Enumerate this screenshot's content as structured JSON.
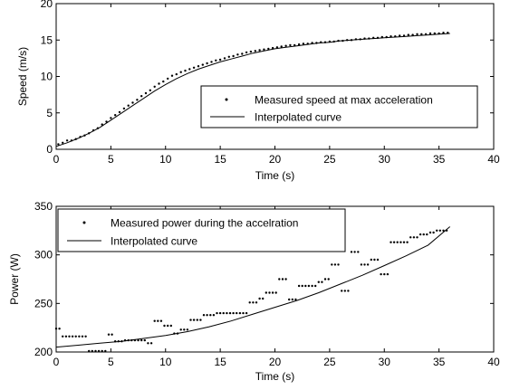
{
  "chart_data": [
    {
      "type": "line",
      "xlabel": "Time (s)",
      "ylabel": "Speed (m/s)",
      "xlim": [
        0,
        40
      ],
      "ylim": [
        0,
        20
      ],
      "xticks": [
        "0",
        "5",
        "10",
        "15",
        "20",
        "25",
        "30",
        "35",
        "40"
      ],
      "yticks": [
        "0",
        "5",
        "10",
        "15",
        "20"
      ],
      "grid": false,
      "legend_position": "lower-right",
      "series": [
        {
          "name": "Measured speed at max acceleration",
          "style": "points",
          "x": [
            0.2,
            0.6,
            1.0,
            1.4,
            1.8,
            2.2,
            2.6,
            3.0,
            3.4,
            3.8,
            4.2,
            4.6,
            5.0,
            5.4,
            5.8,
            6.2,
            6.6,
            7.0,
            7.4,
            7.8,
            8.2,
            8.6,
            9.0,
            9.4,
            9.8,
            10.2,
            10.6,
            11.0,
            11.4,
            11.8,
            12.2,
            12.6,
            13.0,
            13.4,
            13.8,
            14.2,
            14.6,
            15.0,
            15.4,
            15.8,
            16.2,
            16.6,
            17.0,
            17.4,
            17.8,
            18.2,
            18.6,
            19.0,
            19.4,
            19.8,
            20.2,
            20.6,
            21.0,
            21.4,
            21.8,
            22.2,
            22.6,
            23.0,
            23.4,
            23.8,
            24.2,
            24.6,
            25.0,
            25.4,
            25.8,
            26.2,
            26.6,
            27.0,
            27.4,
            27.8,
            28.2,
            28.6,
            29.0,
            29.4,
            29.8,
            30.2,
            30.6,
            31.0,
            31.4,
            31.8,
            32.2,
            32.6,
            33.0,
            33.4,
            33.8,
            34.2,
            34.6,
            35.0,
            35.4,
            35.8
          ],
          "y": [
            0.7,
            0.9,
            1.2,
            1.2,
            1.4,
            1.7,
            1.9,
            2.2,
            2.6,
            2.9,
            3.4,
            3.8,
            4.3,
            4.7,
            5.1,
            5.6,
            6.0,
            6.4,
            6.8,
            7.3,
            7.7,
            8.1,
            8.6,
            9.0,
            9.3,
            9.7,
            10.1,
            10.3,
            10.6,
            10.8,
            11.0,
            11.2,
            11.4,
            11.6,
            11.8,
            12.0,
            12.2,
            12.3,
            12.5,
            12.7,
            12.8,
            13.0,
            13.1,
            13.3,
            13.4,
            13.5,
            13.6,
            13.7,
            13.8,
            13.9,
            14.0,
            14.1,
            14.2,
            14.3,
            14.3,
            14.4,
            14.5,
            14.5,
            14.6,
            14.6,
            14.7,
            14.7,
            14.8,
            14.8,
            14.9,
            14.9,
            15.0,
            15.0,
            15.1,
            15.1,
            15.2,
            15.2,
            15.3,
            15.3,
            15.4,
            15.4,
            15.5,
            15.5,
            15.6,
            15.6,
            15.7,
            15.7,
            15.8,
            15.8,
            15.8,
            15.9,
            15.9,
            15.9,
            16.0,
            16.0
          ]
        },
        {
          "name": "Interpolated curve",
          "style": "line",
          "x": [
            0,
            1,
            2,
            3,
            4,
            5,
            6,
            7,
            8,
            9,
            10,
            11,
            12,
            13,
            14,
            15,
            16,
            17,
            18,
            19,
            20,
            21,
            22,
            23,
            24,
            25,
            26,
            27,
            28,
            29,
            30,
            31,
            32,
            33,
            34,
            35,
            36
          ],
          "y": [
            0.4,
            0.9,
            1.5,
            2.2,
            3.0,
            4.0,
            5.0,
            6.0,
            7.0,
            8.0,
            8.9,
            9.7,
            10.4,
            11.0,
            11.5,
            12.0,
            12.4,
            12.8,
            13.2,
            13.5,
            13.8,
            14.0,
            14.2,
            14.4,
            14.6,
            14.7,
            14.9,
            15.0,
            15.1,
            15.2,
            15.3,
            15.4,
            15.5,
            15.6,
            15.7,
            15.8,
            15.9
          ]
        }
      ]
    },
    {
      "type": "line",
      "xlabel": "Time (s)",
      "ylabel": "Power (W)",
      "xlim": [
        0,
        40
      ],
      "ylim": [
        200,
        350
      ],
      "xticks": [
        "0",
        "5",
        "10",
        "15",
        "20",
        "25",
        "30",
        "35",
        "40"
      ],
      "yticks": [
        "200",
        "250",
        "300",
        "350"
      ],
      "grid": false,
      "legend_position": "upper-left",
      "series": [
        {
          "name": "Measured power during the accelration",
          "style": "points",
          "x": [
            0,
            0.3,
            0.6,
            0.9,
            1.2,
            1.5,
            1.8,
            2.1,
            2.4,
            2.7,
            3.0,
            3.3,
            3.6,
            3.9,
            4.2,
            4.5,
            4.8,
            5.1,
            5.4,
            5.7,
            6.0,
            6.3,
            6.6,
            6.9,
            7.2,
            7.5,
            7.8,
            8.1,
            8.4,
            8.7,
            9.0,
            9.3,
            9.6,
            9.9,
            10.2,
            10.5,
            10.8,
            11.1,
            11.4,
            11.7,
            12.0,
            12.3,
            12.6,
            12.9,
            13.2,
            13.5,
            13.8,
            14.1,
            14.4,
            14.7,
            15.0,
            15.3,
            15.6,
            15.9,
            16.2,
            16.5,
            16.8,
            17.1,
            17.4,
            17.7,
            18.0,
            18.3,
            18.6,
            18.9,
            19.2,
            19.5,
            19.8,
            20.1,
            20.4,
            20.7,
            21.0,
            21.3,
            21.6,
            21.9,
            22.2,
            22.5,
            22.8,
            23.1,
            23.4,
            23.7,
            24.0,
            24.3,
            24.6,
            24.9,
            25.2,
            25.5,
            25.8,
            26.1,
            26.4,
            26.7,
            27.0,
            27.3,
            27.6,
            27.9,
            28.2,
            28.5,
            28.8,
            29.1,
            29.4,
            29.7,
            30.0,
            30.3,
            30.6,
            30.9,
            31.2,
            31.5,
            31.8,
            32.1,
            32.4,
            32.7,
            33.0,
            33.3,
            33.6,
            33.9,
            34.2,
            34.5,
            34.8,
            35.1,
            35.4,
            35.7
          ],
          "y": [
            224,
            224,
            216,
            216,
            216,
            216,
            216,
            216,
            216,
            216,
            201,
            201,
            201,
            201,
            201,
            201,
            218,
            218,
            211,
            211,
            211,
            212,
            212,
            212,
            212,
            212,
            212,
            212,
            209,
            209,
            232,
            232,
            232,
            227,
            227,
            227,
            219,
            219,
            223,
            223,
            223,
            233,
            233,
            233,
            233,
            238,
            238,
            238,
            238,
            240,
            240,
            240,
            240,
            240,
            240,
            240,
            240,
            240,
            240,
            251,
            251,
            251,
            255,
            255,
            261,
            261,
            261,
            261,
            275,
            275,
            275,
            254,
            254,
            254,
            268,
            268,
            268,
            268,
            268,
            268,
            272,
            272,
            275,
            275,
            290,
            290,
            290,
            263,
            263,
            263,
            303,
            303,
            303,
            290,
            290,
            290,
            295,
            295,
            295,
            280,
            280,
            280,
            313,
            313,
            313,
            313,
            313,
            313,
            318,
            318,
            318,
            321,
            321,
            321,
            323,
            323,
            325,
            325,
            325,
            325
          ]
        },
        {
          "name": "Interpolated curve",
          "style": "line",
          "x": [
            0,
            2,
            4,
            6,
            8,
            10,
            12,
            14,
            16,
            18,
            20,
            22,
            24,
            26,
            28,
            30,
            32,
            34,
            36
          ],
          "y": [
            205,
            207,
            209,
            211,
            214,
            217,
            221,
            226,
            232,
            239,
            246,
            253,
            261,
            270,
            279,
            289,
            299,
            310,
            329
          ]
        }
      ]
    }
  ]
}
